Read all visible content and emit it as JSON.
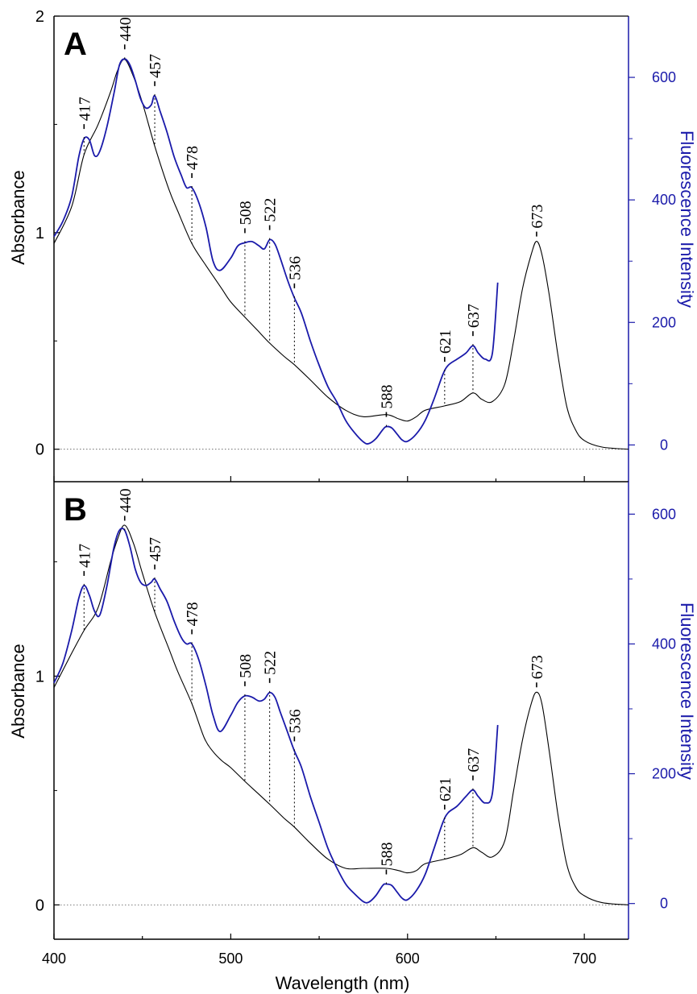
{
  "figure": {
    "xlabel": "Wavelength (nm)",
    "x_tick_labels": [
      "400",
      "500",
      "600",
      "700"
    ]
  },
  "chart_data": [
    {
      "type": "line",
      "panel": "A",
      "xlabel": "Wavelength (nm)",
      "ylabel": "Absorbance",
      "y2label": "Fluorescence Intensity",
      "xlim": [
        400,
        725
      ],
      "ylim": [
        -0.15,
        2.0
      ],
      "y2lim": [
        -60,
        700
      ],
      "x_ticks": [
        400,
        500,
        600,
        700
      ],
      "y_ticks": [
        0,
        1,
        2
      ],
      "y2_ticks": [
        0,
        200,
        400,
        600
      ],
      "y_tick_labels": [
        "0",
        "1",
        "2"
      ],
      "y2_tick_labels": [
        "0",
        "200",
        "400",
        "600"
      ],
      "zero_line": true,
      "series": [
        {
          "axis": "left",
          "color": "#000000",
          "x": [
            400,
            410,
            417,
            425,
            432,
            436,
            440,
            445,
            450,
            457,
            465,
            470,
            478,
            485,
            490,
            495,
            500,
            508,
            515,
            522,
            530,
            536,
            545,
            555,
            565,
            575,
            588,
            595,
            600,
            605,
            610,
            621,
            630,
            637,
            642,
            648,
            655,
            660,
            665,
            670,
            673,
            676,
            680,
            685,
            690,
            695,
            700,
            710,
            725
          ],
          "y": [
            0.95,
            1.12,
            1.36,
            1.5,
            1.65,
            1.75,
            1.8,
            1.72,
            1.6,
            1.4,
            1.2,
            1.1,
            0.95,
            0.86,
            0.8,
            0.74,
            0.68,
            0.61,
            0.55,
            0.49,
            0.43,
            0.39,
            0.32,
            0.24,
            0.18,
            0.15,
            0.16,
            0.14,
            0.13,
            0.15,
            0.18,
            0.2,
            0.22,
            0.26,
            0.23,
            0.22,
            0.3,
            0.5,
            0.74,
            0.9,
            0.96,
            0.9,
            0.72,
            0.44,
            0.2,
            0.09,
            0.04,
            0.01,
            0.0
          ]
        },
        {
          "axis": "right",
          "color": "#1a1aaa",
          "x": [
            400,
            405,
            410,
            414,
            417,
            420,
            423,
            426,
            430,
            434,
            437,
            440,
            443,
            446,
            449,
            452,
            455,
            457,
            460,
            464,
            468,
            472,
            475,
            478,
            482,
            486,
            490,
            494,
            500,
            504,
            508,
            512,
            516,
            519,
            522,
            525,
            528,
            532,
            536,
            540,
            545,
            550,
            555,
            560,
            565,
            570,
            575,
            578,
            582,
            586,
            588,
            591,
            594,
            597,
            600,
            605,
            610,
            615,
            620,
            623,
            628,
            633,
            637,
            640,
            644,
            648,
            651
          ],
          "y": [
            340,
            365,
            405,
            470,
            500,
            498,
            472,
            480,
            520,
            575,
            620,
            630,
            620,
            595,
            565,
            550,
            555,
            570,
            545,
            510,
            470,
            440,
            420,
            420,
            395,
            355,
            300,
            285,
            305,
            325,
            330,
            332,
            325,
            320,
            335,
            328,
            305,
            270,
            240,
            215,
            170,
            130,
            95,
            70,
            40,
            20,
            5,
            2,
            10,
            25,
            30,
            28,
            18,
            8,
            6,
            18,
            40,
            75,
            115,
            130,
            140,
            150,
            162,
            150,
            140,
            150,
            265
          ]
        }
      ],
      "annotations": [
        {
          "label": "417",
          "x": 417,
          "side": "right"
        },
        {
          "label": "440",
          "x": 440,
          "side": "right"
        },
        {
          "label": "457",
          "x": 457,
          "side": "right"
        },
        {
          "label": "478",
          "x": 478,
          "side": "right"
        },
        {
          "label": "508",
          "x": 508,
          "side": "right"
        },
        {
          "label": "522",
          "x": 522,
          "side": "right"
        },
        {
          "label": "536",
          "x": 536,
          "side": "right"
        },
        {
          "label": "588",
          "x": 588,
          "side": "right"
        },
        {
          "label": "621",
          "x": 621,
          "side": "right"
        },
        {
          "label": "637",
          "x": 637,
          "side": "right"
        },
        {
          "label": "673",
          "x": 673,
          "side": "left"
        }
      ]
    },
    {
      "type": "line",
      "panel": "B",
      "xlabel": "Wavelength (nm)",
      "ylabel": "Absorbance",
      "y2label": "Fluorescence Intensity",
      "xlim": [
        400,
        725
      ],
      "ylim": [
        -0.15,
        1.85
      ],
      "y2lim": [
        -55,
        650
      ],
      "x_ticks": [
        400,
        500,
        600,
        700
      ],
      "y_ticks": [
        0,
        1
      ],
      "y2_ticks": [
        0,
        200,
        400,
        600
      ],
      "y_tick_labels": [
        "0",
        "1"
      ],
      "y2_tick_labels": [
        "0",
        "200",
        "400",
        "600"
      ],
      "zero_line": true,
      "series": [
        {
          "axis": "left",
          "color": "#000000",
          "x": [
            400,
            410,
            417,
            425,
            432,
            436,
            440,
            445,
            450,
            457,
            465,
            470,
            478,
            485,
            490,
            495,
            500,
            508,
            515,
            522,
            530,
            536,
            545,
            555,
            565,
            575,
            588,
            595,
            600,
            605,
            610,
            621,
            630,
            637,
            642,
            648,
            655,
            660,
            665,
            670,
            673,
            676,
            680,
            685,
            690,
            695,
            700,
            710,
            725
          ],
          "y": [
            0.95,
            1.1,
            1.2,
            1.3,
            1.5,
            1.6,
            1.66,
            1.58,
            1.45,
            1.28,
            1.12,
            1.02,
            0.88,
            0.73,
            0.67,
            0.63,
            0.6,
            0.54,
            0.49,
            0.44,
            0.38,
            0.34,
            0.27,
            0.2,
            0.16,
            0.16,
            0.16,
            0.15,
            0.14,
            0.15,
            0.18,
            0.2,
            0.22,
            0.25,
            0.23,
            0.21,
            0.28,
            0.5,
            0.72,
            0.88,
            0.93,
            0.88,
            0.68,
            0.4,
            0.18,
            0.08,
            0.04,
            0.01,
            0.0
          ]
        },
        {
          "axis": "right",
          "color": "#1a1aaa",
          "x": [
            400,
            405,
            410,
            414,
            417,
            420,
            423,
            426,
            430,
            434,
            437,
            440,
            443,
            446,
            449,
            452,
            455,
            457,
            460,
            464,
            468,
            472,
            475,
            478,
            482,
            486,
            490,
            494,
            500,
            504,
            508,
            512,
            516,
            519,
            522,
            525,
            528,
            532,
            536,
            540,
            545,
            550,
            555,
            560,
            565,
            570,
            575,
            578,
            582,
            586,
            588,
            591,
            594,
            597,
            600,
            605,
            610,
            615,
            620,
            623,
            628,
            633,
            637,
            640,
            644,
            648,
            651
          ],
          "y": [
            340,
            370,
            420,
            470,
            490,
            475,
            450,
            445,
            490,
            550,
            575,
            575,
            550,
            515,
            495,
            490,
            495,
            500,
            485,
            465,
            435,
            410,
            400,
            400,
            375,
            335,
            290,
            265,
            290,
            310,
            320,
            318,
            312,
            315,
            325,
            318,
            295,
            265,
            235,
            210,
            165,
            125,
            85,
            55,
            30,
            15,
            3,
            2,
            12,
            28,
            30,
            28,
            18,
            8,
            6,
            20,
            45,
            85,
            125,
            140,
            150,
            165,
            175,
            165,
            155,
            170,
            275
          ]
        }
      ],
      "annotations": [
        {
          "label": "417",
          "x": 417,
          "side": "right"
        },
        {
          "label": "440",
          "x": 440,
          "side": "right"
        },
        {
          "label": "457",
          "x": 457,
          "side": "right"
        },
        {
          "label": "478",
          "x": 478,
          "side": "right"
        },
        {
          "label": "508",
          "x": 508,
          "side": "right"
        },
        {
          "label": "522",
          "x": 522,
          "side": "right"
        },
        {
          "label": "536",
          "x": 536,
          "side": "right"
        },
        {
          "label": "588",
          "x": 588,
          "side": "right"
        },
        {
          "label": "621",
          "x": 621,
          "side": "right"
        },
        {
          "label": "637",
          "x": 637,
          "side": "right"
        },
        {
          "label": "673",
          "x": 673,
          "side": "left"
        }
      ]
    }
  ]
}
